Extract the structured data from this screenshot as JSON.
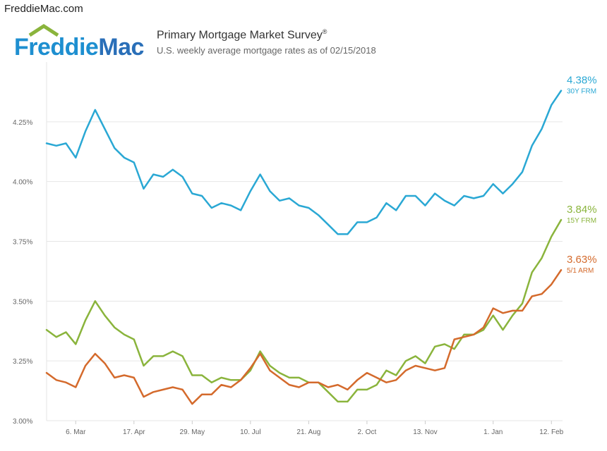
{
  "header": {
    "site": "FreddieMac.com",
    "logo_word1": "Freddie",
    "logo_word2": "Mac",
    "title": "Primary Mortgage Market Survey",
    "title_mark": "®",
    "subtitle": "U.S. weekly average mortgage rates as of 02/15/2018"
  },
  "chart_data": {
    "type": "line",
    "title": "Primary Mortgage Market Survey",
    "subtitle": "U.S. weekly average mortgage rates as of 02/15/2018",
    "ylim": [
      3.0,
      4.5
    ],
    "yticks": [
      "3.00%",
      "3.25%",
      "3.50%",
      "3.75%",
      "4.00%",
      "4.25%"
    ],
    "ytick_values": [
      3.0,
      3.25,
      3.5,
      3.75,
      4.0,
      4.25
    ],
    "xticks": [
      "6. Mar",
      "17. Apr",
      "29. May",
      "10. Jul",
      "21. Aug",
      "2. Oct",
      "13. Nov",
      "1. Jan",
      "12. Feb"
    ],
    "xtick_weeks": [
      3,
      9,
      15,
      21,
      27,
      33,
      39,
      46,
      52
    ],
    "grid": true,
    "legend": "right-end labels",
    "series": [
      {
        "name": "30Y FRM",
        "end_label": "4.38%",
        "color": "#2aa8d4",
        "values": [
          4.16,
          4.15,
          4.16,
          4.1,
          4.21,
          4.3,
          4.22,
          4.14,
          4.1,
          4.08,
          3.97,
          4.03,
          4.02,
          4.05,
          4.02,
          3.95,
          3.94,
          3.89,
          3.91,
          3.9,
          3.88,
          3.96,
          4.03,
          3.96,
          3.92,
          3.93,
          3.9,
          3.89,
          3.86,
          3.82,
          3.78,
          3.78,
          3.83,
          3.83,
          3.85,
          3.91,
          3.88,
          3.94,
          3.94,
          3.9,
          3.95,
          3.92,
          3.9,
          3.94,
          3.93,
          3.94,
          3.99,
          3.95,
          3.99,
          4.04,
          4.15,
          4.22,
          4.32,
          4.38
        ]
      },
      {
        "name": "15Y FRM",
        "end_label": "3.84%",
        "color": "#8ab43c",
        "values": [
          3.38,
          3.35,
          3.37,
          3.32,
          3.42,
          3.5,
          3.44,
          3.39,
          3.36,
          3.34,
          3.23,
          3.27,
          3.27,
          3.29,
          3.27,
          3.19,
          3.19,
          3.16,
          3.18,
          3.17,
          3.17,
          3.21,
          3.29,
          3.23,
          3.2,
          3.18,
          3.18,
          3.16,
          3.16,
          3.12,
          3.08,
          3.08,
          3.13,
          3.13,
          3.15,
          3.21,
          3.19,
          3.25,
          3.27,
          3.24,
          3.31,
          3.32,
          3.3,
          3.36,
          3.36,
          3.38,
          3.44,
          3.38,
          3.44,
          3.49,
          3.62,
          3.68,
          3.77,
          3.84
        ]
      },
      {
        "name": "5/1 ARM",
        "end_label": "3.63%",
        "color": "#d46a2c",
        "values": [
          3.2,
          3.17,
          3.16,
          3.14,
          3.23,
          3.28,
          3.24,
          3.18,
          3.19,
          3.18,
          3.1,
          3.12,
          3.13,
          3.14,
          3.13,
          3.07,
          3.11,
          3.11,
          3.15,
          3.14,
          3.17,
          3.22,
          3.28,
          3.21,
          3.18,
          3.15,
          3.14,
          3.16,
          3.16,
          3.14,
          3.15,
          3.13,
          3.17,
          3.2,
          3.18,
          3.16,
          3.17,
          3.21,
          3.23,
          3.22,
          3.21,
          3.22,
          3.34,
          3.35,
          3.36,
          3.39,
          3.47,
          3.45,
          3.46,
          3.46,
          3.52,
          3.53,
          3.57,
          3.63
        ]
      }
    ]
  }
}
